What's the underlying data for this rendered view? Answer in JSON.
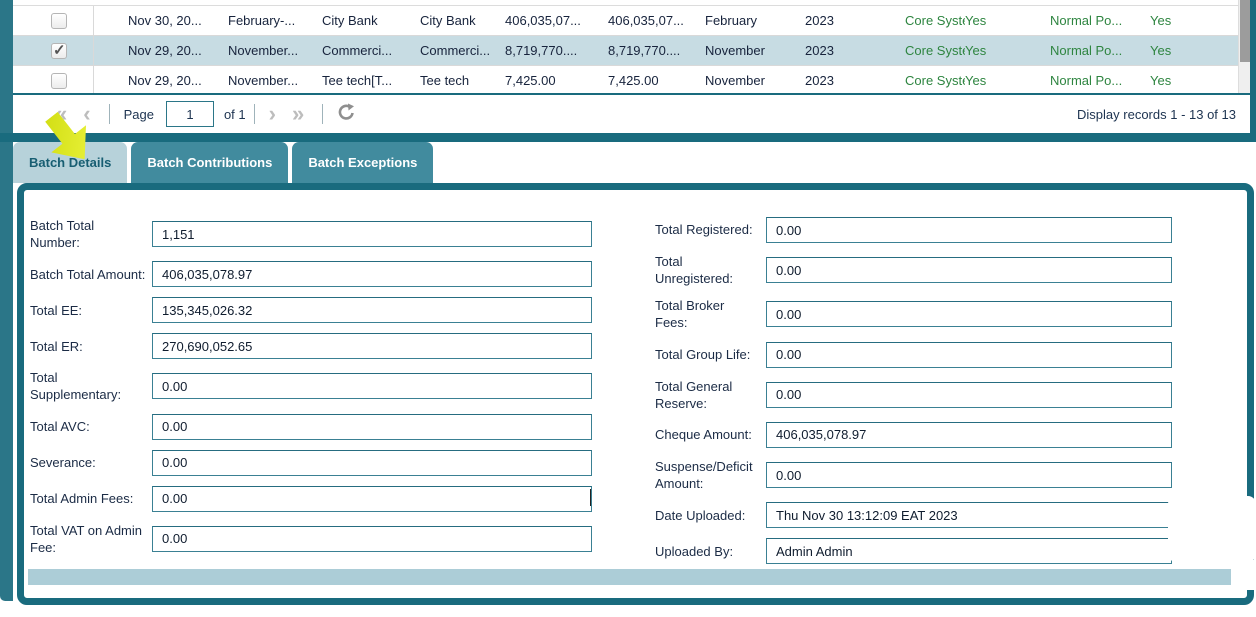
{
  "grid": {
    "rows": [
      {
        "checked": false,
        "selected": false,
        "cells": [
          "Nov 30, 20...",
          "February-...",
          "City Bank",
          "City Bank",
          "406,035,07...",
          "406,035,07...",
          "February",
          "2023",
          "Core Syste...",
          "Yes",
          "Normal Po...",
          "Yes"
        ]
      },
      {
        "checked": true,
        "selected": true,
        "cells": [
          "Nov 29, 20...",
          "November...",
          "Commerci...",
          "Commerci...",
          "8,719,770....",
          "8,719,770....",
          "November",
          "2023",
          "Core Syste...",
          "Yes",
          "Normal Po...",
          "Yes"
        ]
      },
      {
        "checked": false,
        "selected": false,
        "cells": [
          "Nov 29, 20...",
          "November...",
          "Tee tech[T...",
          "Tee tech",
          "7,425.00",
          "7,425.00",
          "November",
          "2023",
          "Core Syste...",
          "Yes",
          "Normal Po...",
          "Yes"
        ]
      }
    ]
  },
  "pagination": {
    "first_icon": "«",
    "prev_icon": "‹",
    "next_icon": "›",
    "last_icon": "»",
    "page_label": "Page",
    "page_value": "1",
    "of_label": "of 1",
    "display_records": "Display records 1 - 13 of 13"
  },
  "tabs": [
    {
      "label": "Batch Details",
      "active": true
    },
    {
      "label": "Batch Contributions",
      "active": false
    },
    {
      "label": "Batch Exceptions",
      "active": false
    }
  ],
  "form": {
    "left": [
      {
        "label": "Batch Total Number:",
        "value": "1,151"
      },
      {
        "label": "Batch Total Amount:",
        "value": "406,035,078.97"
      },
      {
        "label": "Total EE:",
        "value": "135,345,026.32"
      },
      {
        "label": "Total ER:",
        "value": "270,690,052.65"
      },
      {
        "label": "Total Supplementary:",
        "value": "0.00"
      },
      {
        "label": "Total AVC:",
        "value": "0.00"
      },
      {
        "label": "Severance:",
        "value": "0.00"
      },
      {
        "label": "Total Admin Fees:",
        "value": "0.00",
        "caret": true
      },
      {
        "label": "Total VAT on Admin Fee:",
        "value": "0.00"
      }
    ],
    "right": [
      {
        "label": "Total Registered:",
        "value": "0.00"
      },
      {
        "label": "Total Unregistered:",
        "value": "0.00"
      },
      {
        "label": "Total Broker Fees:",
        "value": "0.00"
      },
      {
        "label": "Total Group Life:",
        "value": "0.00"
      },
      {
        "label": "Total General Reserve:",
        "value": "0.00"
      },
      {
        "label": "Cheque Amount:",
        "value": "406,035,078.97"
      },
      {
        "label": "Suspense/Deficit Amount:",
        "value": "0.00"
      },
      {
        "label": "Date Uploaded:",
        "value": "Thu Nov 30 13:12:09 EAT 2023"
      },
      {
        "label": "Uploaded By:",
        "value": "Admin Admin"
      }
    ]
  },
  "colors": {
    "accent_teal": "#196b7e",
    "tab_inactive": "#418b9e",
    "tab_active_bg": "#b7d2da",
    "selected_row": "#c7dce3",
    "green_text": "#2e8540",
    "scrollbar_blue": "#accdd7",
    "arrow_yellow": "#dce81a"
  }
}
